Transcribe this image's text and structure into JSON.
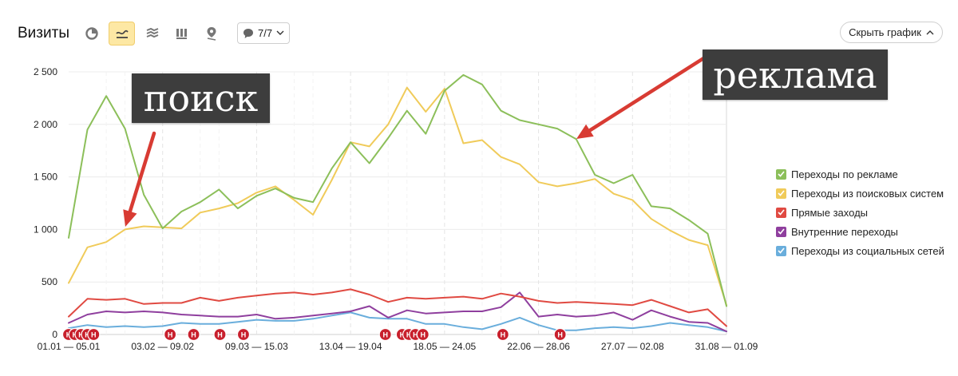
{
  "header": {
    "title": "Визиты",
    "notes_label": "7/7",
    "hide_chart_label": "Скрыть график"
  },
  "toolbar": {
    "icons": [
      "pie-chart-icon",
      "line-chart-icon",
      "area-stacked-icon",
      "bar-chart-icon",
      "map-pin-icon"
    ],
    "active": "line-chart-icon"
  },
  "callouts": {
    "search": "поиск",
    "ads": "реклама"
  },
  "colors": {
    "ads": "#8cbf5a",
    "search": "#f0cb5a",
    "direct": "#e04a42",
    "internal": "#8f3f9e",
    "social": "#6aaedc",
    "arrow": "#d83b33",
    "note_marker": "#c8202d"
  },
  "chart_data": {
    "type": "line",
    "x_tick_labels": [
      "01.01 — 05.01",
      "03.02 — 09.02",
      "09.03 — 15.03",
      "13.04 — 19.04",
      "18.05 — 24.05",
      "22.06 — 28.06",
      "27.07 — 02.08",
      "31.08 — 01.09"
    ],
    "y_ticks": [
      0,
      500,
      1000,
      1500,
      2000,
      2500
    ],
    "y_tick_labels": [
      "0",
      "500",
      "1 000",
      "1 500",
      "2 000",
      "2 500"
    ],
    "ylim": [
      0,
      2500
    ],
    "grid": true,
    "legend_position": "right",
    "note_marker_label": "Н",
    "series": [
      {
        "name": "Переходы по рекламе",
        "color": "#8cbf5a",
        "values": [
          920,
          1950,
          2270,
          1960,
          1330,
          1010,
          1170,
          1260,
          1380,
          1200,
          1320,
          1390,
          1300,
          1260,
          1580,
          1830,
          1630,
          1870,
          2130,
          1910,
          2320,
          2470,
          2380,
          2130,
          2040,
          2000,
          1960,
          1860,
          1520,
          1440,
          1520,
          1220,
          1200,
          1090,
          960,
          270
        ]
      },
      {
        "name": "Переходы из поисковых систем",
        "color": "#f0cb5a",
        "values": [
          490,
          830,
          880,
          1000,
          1030,
          1020,
          1010,
          1160,
          1200,
          1250,
          1350,
          1410,
          1280,
          1140,
          1470,
          1830,
          1790,
          2000,
          2350,
          2120,
          2340,
          1820,
          1850,
          1690,
          1620,
          1450,
          1410,
          1440,
          1480,
          1340,
          1280,
          1100,
          990,
          900,
          850,
          280
        ]
      },
      {
        "name": "Прямые заходы",
        "color": "#e04a42",
        "values": [
          170,
          340,
          330,
          340,
          290,
          300,
          300,
          350,
          320,
          350,
          370,
          390,
          400,
          380,
          400,
          430,
          380,
          310,
          350,
          340,
          350,
          360,
          340,
          390,
          360,
          320,
          300,
          310,
          300,
          290,
          280,
          330,
          270,
          210,
          240,
          80
        ]
      },
      {
        "name": "Внутренние переходы",
        "color": "#8f3f9e",
        "values": [
          110,
          190,
          220,
          210,
          220,
          210,
          190,
          180,
          170,
          170,
          190,
          150,
          160,
          180,
          200,
          220,
          270,
          160,
          230,
          200,
          210,
          220,
          220,
          260,
          400,
          170,
          190,
          170,
          180,
          210,
          140,
          230,
          170,
          120,
          110,
          30
        ]
      },
      {
        "name": "Переходы из социальных сетей",
        "color": "#6aaedc",
        "values": [
          60,
          90,
          70,
          80,
          70,
          80,
          110,
          100,
          100,
          120,
          140,
          130,
          130,
          150,
          180,
          210,
          160,
          150,
          150,
          100,
          100,
          70,
          50,
          100,
          160,
          90,
          40,
          40,
          60,
          70,
          60,
          80,
          110,
          90,
          70,
          30
        ]
      }
    ],
    "note_markers": [
      {
        "at": 0.0
      },
      {
        "at": 0.33
      },
      {
        "at": 0.66
      },
      {
        "at": 1.0
      },
      {
        "at": 1.33
      },
      {
        "at": 5.4
      },
      {
        "at": 6.65
      },
      {
        "at": 8.05
      },
      {
        "at": 9.3
      },
      {
        "at": 16.85
      },
      {
        "at": 17.75
      },
      {
        "at": 18.1
      },
      {
        "at": 18.45
      },
      {
        "at": 18.85
      },
      {
        "at": 23.1
      },
      {
        "at": 26.15
      }
    ]
  }
}
